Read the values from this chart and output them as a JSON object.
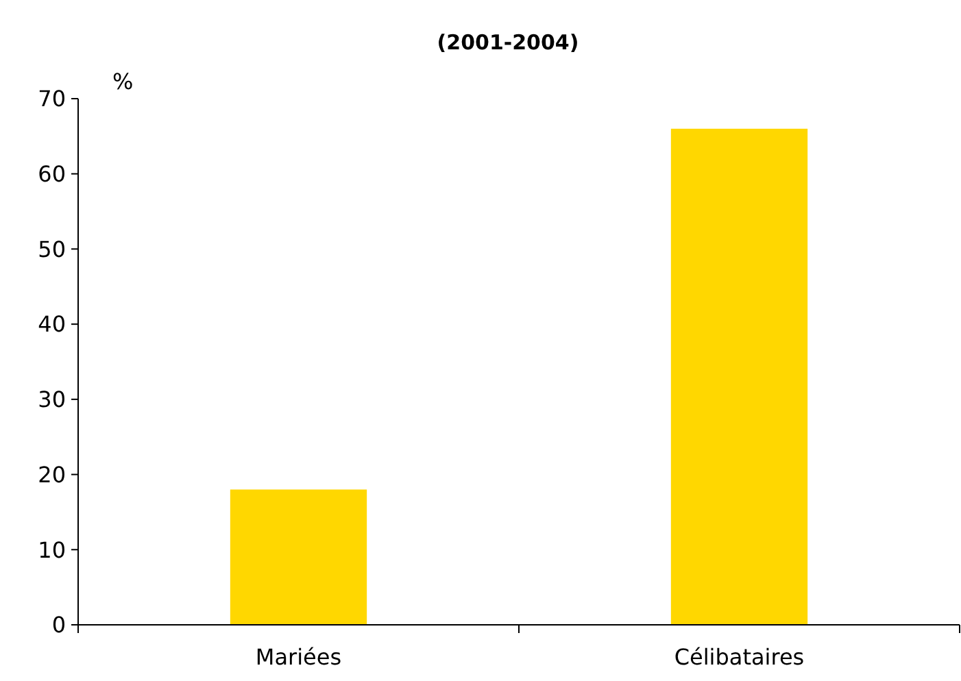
{
  "chart_data": {
    "type": "bar",
    "title": "(2001-2004)",
    "ylabel": "%",
    "categories": [
      "Mariées",
      "Célibataires"
    ],
    "values": [
      18,
      66
    ],
    "color": "#ffd700",
    "ylim": [
      0,
      70
    ],
    "yticks": [
      0,
      10,
      20,
      30,
      40,
      50,
      60,
      70
    ],
    "grid": false
  }
}
